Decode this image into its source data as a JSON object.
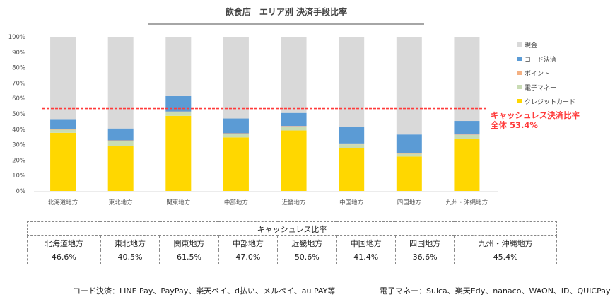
{
  "chart_data": {
    "type": "bar",
    "stacked": true,
    "title": "飲食店　エリア別 決済手段比率",
    "categories": [
      "北海道地方",
      "東北地方",
      "関東地方",
      "中部地方",
      "近畿地方",
      "中国地方",
      "四国地方",
      "九州・沖縄地方"
    ],
    "series": [
      {
        "name": "クレジットカード",
        "color": "#ffd700",
        "values": [
          37.7,
          29.3,
          48.7,
          34.7,
          39.2,
          27.9,
          22.3,
          33.9
        ]
      },
      {
        "name": "電子マネー",
        "color": "#c9dcb4",
        "values": [
          2.0,
          3.2,
          2.5,
          2.2,
          2.6,
          2.3,
          1.8,
          2.4
        ]
      },
      {
        "name": "ポイント",
        "color": "#f4b183",
        "values": [
          0.5,
          0.3,
          0.3,
          0.5,
          0.3,
          0.6,
          0.6,
          0.3
        ]
      },
      {
        "name": "コード決済",
        "color": "#5b9bd5",
        "values": [
          6.4,
          7.7,
          10.0,
          9.6,
          8.5,
          10.6,
          11.9,
          8.8
        ]
      },
      {
        "name": "現金",
        "color": "#d9d9d9",
        "values": [
          53.4,
          59.5,
          38.5,
          53.0,
          49.4,
          58.6,
          63.4,
          54.6
        ]
      }
    ],
    "legend_order": [
      "現金",
      "コード決済",
      "ポイント",
      "電子マネー",
      "クレジットカード"
    ],
    "yticks": [
      "0%",
      "10%",
      "20%",
      "30%",
      "40%",
      "50%",
      "60%",
      "70%",
      "80%",
      "90%",
      "100%"
    ],
    "ylim": [
      0,
      100
    ],
    "reference_line": {
      "value": 53.4,
      "color": "#ff3b3b",
      "label1": "キャッシュレス決済比率",
      "label2": "全体 53.4%"
    },
    "legend_position": "right"
  },
  "table": {
    "header": "キャッシュレス比率",
    "regions": [
      "北海道地方",
      "東北地方",
      "関東地方",
      "中部地方",
      "近畿地方",
      "中国地方",
      "四国地方",
      "九州・沖縄地方"
    ],
    "values": [
      "46.6%",
      "40.5%",
      "61.5%",
      "47.0%",
      "50.6%",
      "41.4%",
      "36.6%",
      "45.4%"
    ]
  },
  "footnotes": {
    "code": "コード決済：LINE Pay、PayPay、楽天ペイ、d払い、メルペイ、au PAY等",
    "emoney": "電子マネー：Suica、楽天Edy、nanaco、WAON、iD、QUICPay等"
  }
}
